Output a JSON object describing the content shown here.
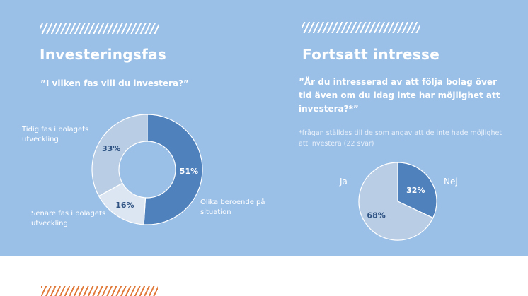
{
  "left": {
    "title": "Investeringsfas",
    "question": "”I vilken fas vill du investera?”"
  },
  "right": {
    "title": "Fortsatt intresse",
    "question": "”Är du intresserad av att följa bolag över tid även om du idag inte har möjlighet att investera?*”",
    "note": "*frågan ställdes till de som angav att de inte hade möjlighet att investera (22 svar)"
  },
  "colors": {
    "background": "#9bc0e8",
    "dark": "#4f81bd",
    "mid": "#b9cde5",
    "light": "#dce6f2",
    "accent": "#e07b3c"
  },
  "chart_data": [
    {
      "type": "pie",
      "variant": "donut",
      "categories": [
        "Olika beroende på situation",
        "Senare fas i bolagets utveckling",
        "Tidig fas i bolagets utveckling"
      ],
      "values": [
        51,
        16,
        33
      ],
      "labels": [
        "51%",
        "16%",
        "33%"
      ],
      "colors": [
        "#4f81bd",
        "#dce6f2",
        "#b9cde5"
      ]
    },
    {
      "type": "pie",
      "categories": [
        "Nej",
        "Ja"
      ],
      "values": [
        32,
        68
      ],
      "labels": [
        "32%",
        "68%"
      ],
      "colors": [
        "#4f81bd",
        "#b9cde5"
      ]
    }
  ]
}
